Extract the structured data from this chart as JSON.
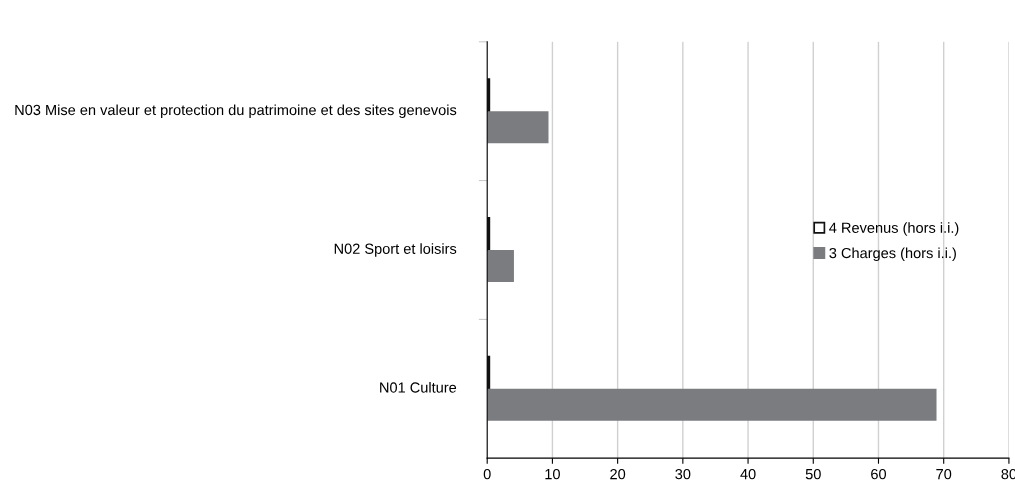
{
  "chart_data": {
    "type": "bar",
    "orientation": "horizontal",
    "categories": [
      "N03 Mise en valeur et protection du patrimoine et des sites genevois",
      "N02 Sport et loisirs",
      "N01 Culture"
    ],
    "series": [
      {
        "name": "4 Revenus (hors i.i.)",
        "color": "#ffffff",
        "values": [
          0.3,
          0.3,
          0.3
        ]
      },
      {
        "name": "3 Charges (hors i.i.)",
        "color": "#7b7c80",
        "values": [
          9.4,
          4.1,
          68.9
        ]
      }
    ],
    "xlim": [
      0,
      80
    ],
    "xticks": [
      0,
      10,
      20,
      30,
      40,
      50,
      60,
      70,
      80
    ],
    "grid": "x",
    "legend": "right"
  }
}
